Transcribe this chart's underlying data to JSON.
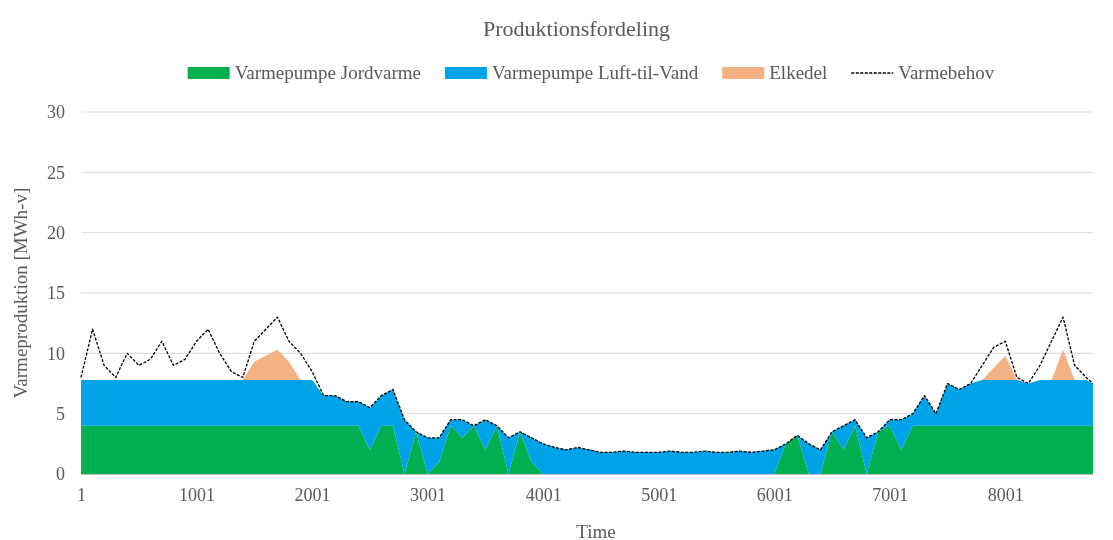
{
  "chart_data": {
    "type": "area",
    "title": "Produktionsfordeling",
    "xlabel": "Time",
    "ylabel": "Varmeproduktion [MWh-v]",
    "x": [
      1,
      101,
      201,
      301,
      401,
      501,
      601,
      701,
      801,
      901,
      1001,
      1101,
      1201,
      1301,
      1401,
      1501,
      1601,
      1701,
      1801,
      1901,
      2001,
      2101,
      2201,
      2301,
      2401,
      2501,
      2601,
      2701,
      2801,
      2901,
      3001,
      3101,
      3201,
      3301,
      3401,
      3501,
      3601,
      3701,
      3801,
      3901,
      4001,
      4101,
      4201,
      4301,
      4401,
      4501,
      4601,
      4701,
      4801,
      4901,
      5001,
      5101,
      5201,
      5301,
      5401,
      5501,
      5601,
      5701,
      5801,
      5901,
      6001,
      6101,
      6201,
      6301,
      6401,
      6501,
      6601,
      6701,
      6801,
      6901,
      7001,
      7101,
      7201,
      7301,
      7401,
      7501,
      7601,
      7701,
      7801,
      7901,
      8001,
      8101,
      8201,
      8301,
      8401,
      8501,
      8601,
      8701,
      8760
    ],
    "stacked": true,
    "series": [
      {
        "name": "Varmepumpe Jordvarme",
        "color": "#00b050",
        "values": [
          4,
          4,
          4,
          4,
          4,
          4,
          4,
          4,
          4,
          4,
          4,
          4,
          4,
          4,
          4,
          4,
          4,
          4,
          4,
          4,
          4,
          4,
          4,
          4,
          4,
          2,
          4,
          4,
          0,
          3.5,
          0,
          1,
          4,
          3,
          4,
          2,
          4,
          0,
          3.5,
          1,
          0,
          0,
          0,
          0,
          0,
          0,
          0,
          0,
          0,
          0,
          0,
          0,
          0,
          0,
          0,
          0,
          0,
          0,
          0,
          0,
          0,
          2.5,
          3.2,
          0,
          0,
          3.5,
          2,
          4,
          0,
          3.5,
          4,
          2,
          4,
          4,
          4,
          4,
          4,
          4,
          4,
          4,
          4,
          4,
          4,
          4,
          4,
          4,
          4,
          4,
          4
        ]
      },
      {
        "name": "Varmepumpe Luft-til-Vand",
        "color": "#00a2e8",
        "values": [
          3.8,
          3.8,
          3.8,
          3.8,
          3.8,
          3.8,
          3.8,
          3.8,
          3.8,
          3.8,
          3.8,
          3.8,
          3.8,
          3.8,
          3.8,
          3.8,
          3.8,
          3.8,
          3.8,
          3.8,
          3.8,
          2.5,
          2.5,
          2,
          2,
          3.5,
          2.5,
          3,
          4.5,
          0,
          3,
          2,
          0.5,
          1.5,
          0,
          2.5,
          0,
          3,
          0,
          2,
          2.5,
          2.2,
          2,
          2.2,
          2,
          1.8,
          1.8,
          1.9,
          1.8,
          1.8,
          1.8,
          1.9,
          1.8,
          1.8,
          1.9,
          1.8,
          1.8,
          1.9,
          1.8,
          1.9,
          2,
          0,
          0,
          2.5,
          2,
          0,
          2,
          0.5,
          3,
          0,
          0.5,
          2.5,
          1,
          2.5,
          1,
          3.5,
          3,
          3.5,
          3.8,
          3.8,
          3.8,
          3.8,
          3.5,
          3.8,
          3.8,
          3.8,
          3.8,
          3.8,
          3.5
        ]
      },
      {
        "name": "Elkedel",
        "color": "#f4b183",
        "values": [
          0,
          0,
          0,
          0,
          0,
          0,
          0,
          0,
          0,
          0,
          0,
          0,
          0,
          0,
          0,
          1.5,
          2,
          2.5,
          1.5,
          0,
          0,
          0,
          0,
          0,
          0,
          0,
          0,
          0,
          0,
          0,
          0,
          0,
          0,
          0,
          0,
          0,
          0,
          0,
          0,
          0,
          0,
          0,
          0,
          0,
          0,
          0,
          0,
          0,
          0,
          0,
          0,
          0,
          0,
          0,
          0,
          0,
          0,
          0,
          0,
          0,
          0,
          0,
          0,
          0,
          0,
          0,
          0,
          0,
          0,
          0,
          0,
          0,
          0,
          0,
          0,
          0,
          0,
          0,
          0,
          1,
          2,
          0,
          0,
          0,
          0,
          2.5,
          0,
          0,
          0
        ]
      },
      {
        "name": "Varmebehov",
        "type": "line",
        "color": "#000000",
        "line_style": "dashed",
        "values": [
          8,
          12,
          9,
          8,
          10,
          9,
          9.5,
          11,
          9,
          9.5,
          11,
          12,
          10,
          8.5,
          8,
          11,
          12,
          13,
          11,
          10,
          8.5,
          6.5,
          6.5,
          6,
          6,
          5.5,
          6.5,
          7,
          4.5,
          3.5,
          3,
          3,
          4.5,
          4.5,
          4,
          4.5,
          4,
          3,
          3.5,
          3,
          2.5,
          2.2,
          2,
          2.2,
          2,
          1.8,
          1.8,
          1.9,
          1.8,
          1.8,
          1.8,
          1.9,
          1.8,
          1.8,
          1.9,
          1.8,
          1.8,
          1.9,
          1.8,
          1.9,
          2,
          2.5,
          3.2,
          2.5,
          2,
          3.5,
          4,
          4.5,
          3,
          3.5,
          4.5,
          4.5,
          5,
          6.5,
          5,
          7.5,
          7,
          7.5,
          9,
          10.5,
          11,
          8,
          7.5,
          9,
          11,
          13,
          9,
          8,
          7.5
        ]
      }
    ],
    "xlim": [
      1,
      8760
    ],
    "xticks": [
      1,
      1001,
      2001,
      3001,
      4001,
      5001,
      6001,
      7001,
      8001
    ],
    "ylim": [
      0,
      30
    ],
    "yticks": [
      0,
      5,
      10,
      15,
      20,
      25,
      30
    ],
    "grid": "y",
    "legend": "top",
    "marker": "none"
  }
}
